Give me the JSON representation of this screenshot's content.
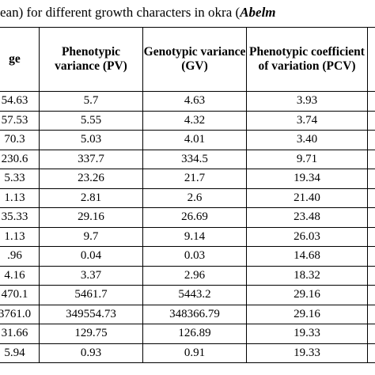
{
  "caption": {
    "text": "ean) for different growth characters in okra (",
    "italic": "Abelm"
  },
  "table": {
    "headers": [
      "ge",
      "Phenotypic variance (PV)",
      "Genotypic variance (GV)",
      "Phenotypic coefficient of variation (PCV)",
      ""
    ],
    "rows": [
      [
        "54.63",
        "5.7",
        "4.63",
        "3.93",
        ""
      ],
      [
        "57.53",
        "5.55",
        "4.32",
        "3.74",
        ""
      ],
      [
        "70.3",
        "5.03",
        "4.01",
        "3.40",
        ""
      ],
      [
        "230.6",
        "337.7",
        "334.5",
        "9.71",
        ""
      ],
      [
        "5.33",
        "23.26",
        "21.7",
        "19.34",
        ""
      ],
      [
        "1.13",
        "2.81",
        "2.6",
        "21.40",
        ""
      ],
      [
        "35.33",
        "29.16",
        "26.69",
        "23.48",
        ""
      ],
      [
        "1.13",
        "9.7",
        "9.14",
        "26.03",
        ""
      ],
      [
        ".96",
        "0.04",
        "0.03",
        "14.68",
        ""
      ],
      [
        "4.16",
        "3.37",
        "2.96",
        "18.32",
        ""
      ],
      [
        "470.1",
        "5461.7",
        "5443.2",
        "29.16",
        ""
      ],
      [
        "3761.0",
        "349554.73",
        "348366.79",
        "29.16",
        ""
      ],
      [
        "31.66",
        "129.75",
        "126.89",
        "19.33",
        ""
      ],
      [
        "5.94",
        "0.93",
        "0.91",
        "19.33",
        ""
      ]
    ]
  }
}
